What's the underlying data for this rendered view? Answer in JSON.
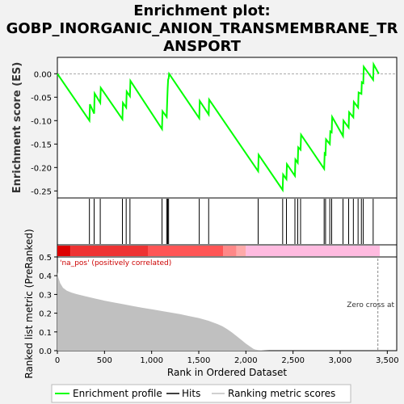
{
  "figure": {
    "title_lines": [
      "Enrichment plot:",
      "GOBP_INORGANIC_ANION_TRANSMEMBRANE_TR",
      "ANSPORT"
    ]
  },
  "chart_data": [
    {
      "type": "line",
      "name": "enrichment-score-panel",
      "ylabel": "Enrichment score (ES)",
      "xlim": [
        0,
        3600
      ],
      "ylim": [
        -0.265,
        0.035
      ],
      "yticks": [
        0.0,
        -0.05,
        -0.1,
        -0.15,
        -0.2,
        -0.25
      ],
      "ytick_labels": [
        "0.00",
        "-0.05",
        "-0.10",
        "-0.15",
        "-0.20",
        "-0.25"
      ],
      "grid": false,
      "line_color": "#00ff00",
      "series": [
        {
          "name": "Enrichment profile",
          "x": [
            0,
            340,
            345,
            390,
            395,
            455,
            460,
            690,
            695,
            730,
            735,
            770,
            775,
            1110,
            1115,
            1160,
            1165,
            1170,
            1175,
            1180,
            1185,
            1505,
            1510,
            1605,
            1610,
            2130,
            2135,
            2390,
            2395,
            2430,
            2435,
            2520,
            2525,
            2550,
            2555,
            2580,
            2585,
            2830,
            2835,
            2845,
            2850,
            2890,
            2895,
            2910,
            2915,
            3030,
            3035,
            3090,
            3095,
            3140,
            3145,
            3190,
            3195,
            3225,
            3230,
            3245,
            3250,
            3350,
            3355,
            3410
          ],
          "y": [
            0.0,
            -0.1,
            -0.065,
            -0.085,
            -0.042,
            -0.062,
            -0.03,
            -0.097,
            -0.062,
            -0.072,
            -0.038,
            -0.048,
            -0.015,
            -0.118,
            -0.08,
            -0.092,
            -0.06,
            -0.032,
            -0.012,
            -0.01,
            0.0,
            -0.095,
            -0.058,
            -0.087,
            -0.055,
            -0.208,
            -0.173,
            -0.248,
            -0.215,
            -0.225,
            -0.193,
            -0.218,
            -0.183,
            -0.19,
            -0.157,
            -0.162,
            -0.13,
            -0.203,
            -0.17,
            -0.172,
            -0.14,
            -0.15,
            -0.123,
            -0.125,
            -0.092,
            -0.133,
            -0.1,
            -0.115,
            -0.082,
            -0.093,
            -0.06,
            -0.072,
            -0.04,
            -0.043,
            -0.018,
            -0.02,
            0.015,
            -0.013,
            0.02,
            0.0
          ]
        }
      ]
    },
    {
      "type": "scatter",
      "name": "hits-panel",
      "legend_name": "Hits",
      "xlim": [
        0,
        3600
      ],
      "positions": [
        340,
        390,
        455,
        690,
        730,
        770,
        1110,
        1160,
        1170,
        1180,
        1505,
        1605,
        2130,
        2390,
        2430,
        2520,
        2550,
        2580,
        2830,
        2845,
        2890,
        2910,
        3030,
        3090,
        3140,
        3190,
        3225,
        3245,
        3350
      ]
    },
    {
      "type": "heatmap",
      "name": "ranked-list-color-bar",
      "xlim": [
        0,
        3600
      ],
      "segments": [
        {
          "start": 0,
          "end": 140,
          "color": "#dd0000"
        },
        {
          "start": 140,
          "end": 960,
          "color": "#ee3333"
        },
        {
          "start": 960,
          "end": 1760,
          "color": "#ff5555"
        },
        {
          "start": 1760,
          "end": 1900,
          "color": "#ff8888"
        },
        {
          "start": 1900,
          "end": 2000,
          "color": "#ffaaaa"
        },
        {
          "start": 2000,
          "end": 3420,
          "color": "#ffbbe0"
        }
      ]
    },
    {
      "type": "area",
      "name": "ranked-metric-panel",
      "ylabel": "Ranked list metric (PreRanked)",
      "xlabel": "Rank in Ordered Dataset",
      "xlim": [
        0,
        3600
      ],
      "ylim": [
        0,
        0.5
      ],
      "xticks": [
        0,
        500,
        1000,
        1500,
        2000,
        2500,
        3000,
        3500
      ],
      "xtick_labels": [
        "0",
        "500",
        "1,000",
        "1,500",
        "2,000",
        "2,500",
        "3,000",
        "3,500"
      ],
      "yticks": [
        0.0,
        0.1,
        0.2,
        0.3,
        0.4,
        0.5
      ],
      "ytick_labels": [
        "0.0",
        "0.1",
        "0.2",
        "0.3",
        "0.4",
        "0.5"
      ],
      "fill_color": "#c0c0c0",
      "x": [
        0,
        10,
        30,
        60,
        100,
        150,
        200,
        300,
        400,
        500,
        600,
        700,
        800,
        900,
        1000,
        1100,
        1200,
        1300,
        1400,
        1500,
        1600,
        1700,
        1750,
        1800,
        1850,
        1900,
        1950,
        2000,
        2050,
        2080,
        2100,
        2130,
        2160,
        2200,
        2250,
        3420
      ],
      "y": [
        0.42,
        0.39,
        0.36,
        0.335,
        0.32,
        0.31,
        0.302,
        0.29,
        0.278,
        0.267,
        0.257,
        0.248,
        0.238,
        0.229,
        0.221,
        0.212,
        0.204,
        0.195,
        0.184,
        0.174,
        0.16,
        0.142,
        0.13,
        0.115,
        0.098,
        0.078,
        0.058,
        0.038,
        0.02,
        0.01,
        0.006,
        0.003,
        0.002,
        0.001,
        0.0,
        0.0
      ],
      "annotations": {
        "pos_label": "'na_pos' (positively correlated)",
        "zero_cross": "Zero cross at",
        "zero_cross_x": 3400
      }
    }
  ],
  "legend": {
    "items": [
      {
        "label": "Enrichment profile",
        "color": "#00ff00"
      },
      {
        "label": "Hits",
        "color": "#000000"
      },
      {
        "label": "Ranking metric scores",
        "color": "#c0c0c0"
      }
    ]
  }
}
